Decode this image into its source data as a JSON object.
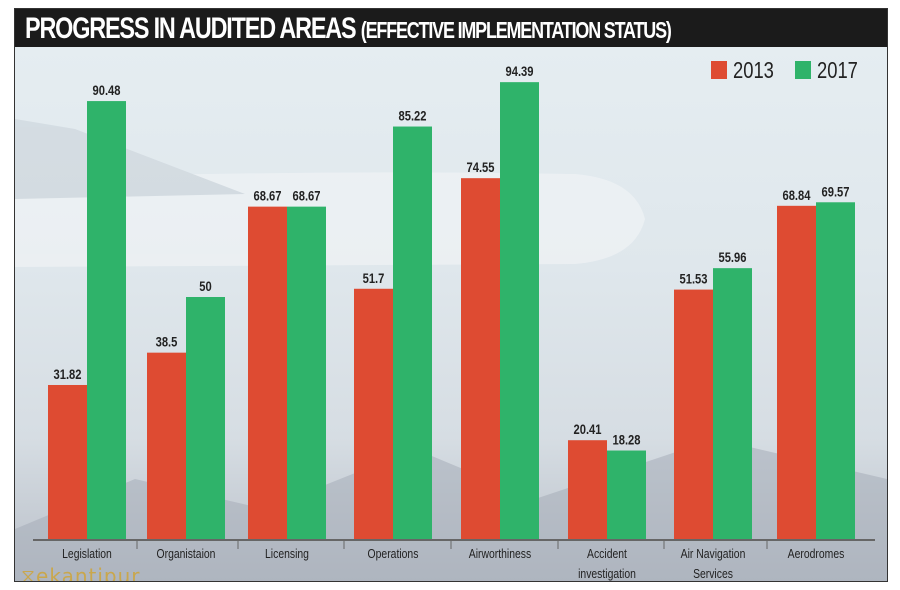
{
  "chart_data": {
    "type": "bar",
    "title": "PROGRESS IN AUDITED AREAS",
    "subtitle": "(EFFECTIVE IMPLEMENTATION STATUS)",
    "categories": [
      "Legislation",
      "Organistaion",
      "Licensing",
      "Operations",
      "Airworthiness",
      "Accident investigation",
      "Air Navigation Services",
      "Aerodromes"
    ],
    "series": [
      {
        "name": "2013",
        "color": "#de4b32",
        "values": [
          31.82,
          38.5,
          68.67,
          51.7,
          74.55,
          20.41,
          51.53,
          68.84
        ],
        "labels": [
          "31.82",
          "38.5",
          "68.67",
          "51.7",
          "74.55",
          "20.41",
          "51.53",
          "68.84"
        ]
      },
      {
        "name": "2017",
        "color": "#2fb36a",
        "values": [
          90.48,
          50,
          68.67,
          85.22,
          94.39,
          18.28,
          55.96,
          69.57
        ],
        "labels": [
          "90.48",
          "50",
          "68.67",
          "85.22",
          "94.39",
          "18.28",
          "55.96",
          "69.57"
        ]
      }
    ],
    "ylim": [
      0,
      100
    ],
    "grid": false,
    "legend": "top-right",
    "xlabel": "",
    "ylabel": ""
  },
  "watermark": "ekantipur"
}
